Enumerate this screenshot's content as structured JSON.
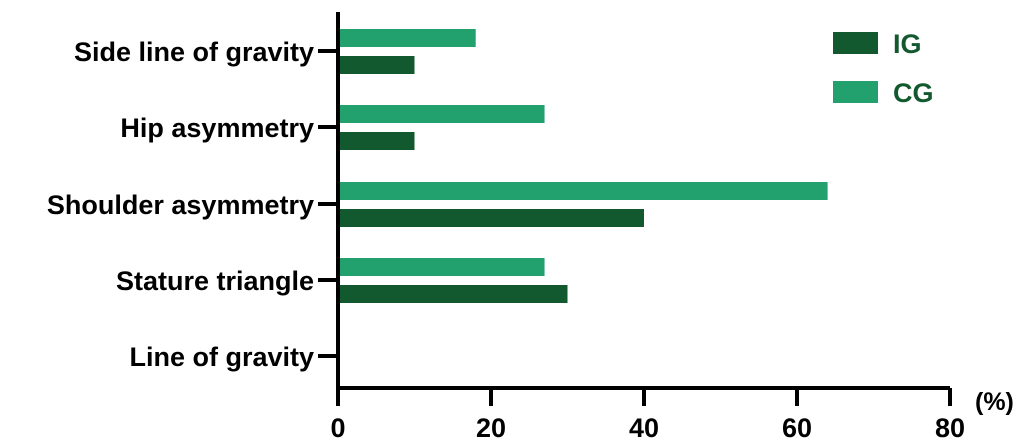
{
  "chart_data": {
    "type": "bar",
    "orientation": "horizontal",
    "categories": [
      "Side line of gravity",
      "Hip asymmetry",
      "Shoulder asymmetry",
      "Stature triangle",
      "Line of gravity"
    ],
    "series": [
      {
        "name": "CG",
        "color": "#22A06E",
        "values": [
          18,
          27,
          64,
          27,
          0
        ]
      },
      {
        "name": "IG",
        "color": "#13592F",
        "values": [
          10,
          10,
          40,
          30,
          0
        ]
      }
    ],
    "xlim": [
      0,
      80
    ],
    "xticks": [
      0,
      20,
      40,
      60,
      80
    ],
    "x_unit_label": "(%)",
    "legend": {
      "position": "top-right",
      "entries": [
        {
          "name": "IG",
          "color": "#13592F"
        },
        {
          "name": "CG",
          "color": "#22A06E"
        }
      ],
      "text_color": "#13592F"
    },
    "grid": false,
    "title": "",
    "xlabel": "",
    "ylabel": ""
  }
}
